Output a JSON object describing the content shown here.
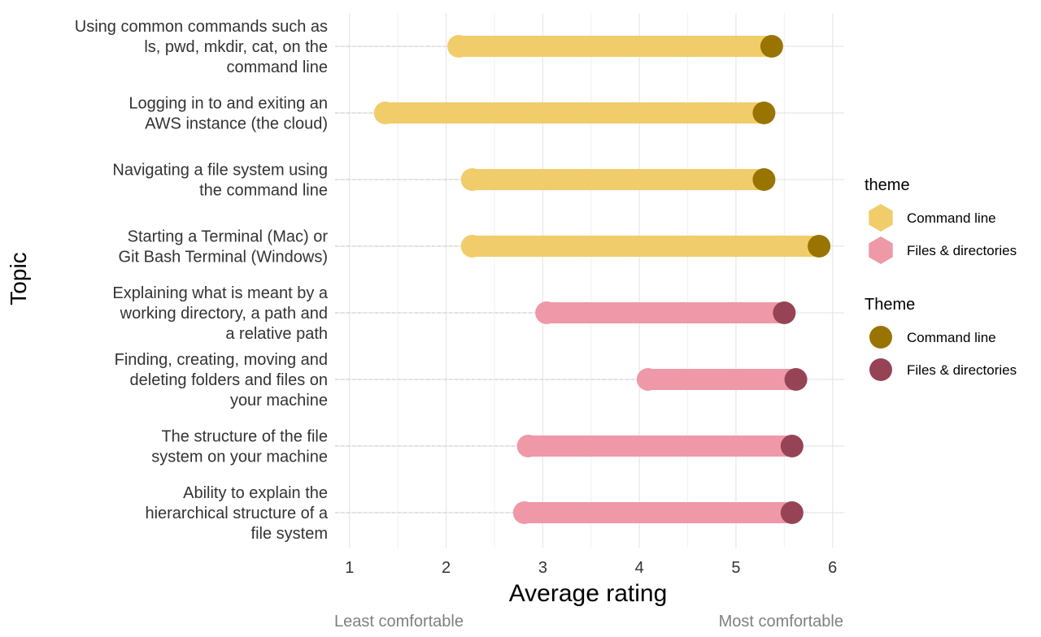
{
  "chart_data": {
    "type": "dumbbell",
    "xlabel": "Average rating",
    "ylabel": "Topic",
    "xlim": [
      0.85,
      6.12
    ],
    "x_ticks": [
      1,
      2,
      3,
      4,
      5,
      6
    ],
    "x_tick_labels": [
      "1",
      "2",
      "3",
      "4",
      "5",
      "6"
    ],
    "grid": true,
    "scale_low_label": "Least comfortable",
    "scale_high_label": "Most comfortable",
    "topics": [
      {
        "label": [
          "Using common commands such as",
          "ls, pwd, mkdir, cat, on the",
          "command line"
        ],
        "theme": "Command line",
        "before": 2.13,
        "after": 5.37
      },
      {
        "label": [
          "Logging in to and exiting an",
          "AWS instance (the cloud)"
        ],
        "theme": "Command line",
        "before": 1.37,
        "after": 5.29
      },
      {
        "label": [
          "Navigating a file system using",
          "the command line"
        ],
        "theme": "Command line",
        "before": 2.27,
        "after": 5.29
      },
      {
        "label": [
          "Starting a Terminal (Mac) or",
          "Git Bash Terminal (Windows)"
        ],
        "theme": "Command line",
        "before": 2.27,
        "after": 5.86
      },
      {
        "label": [
          "Explaining what is meant by a",
          "working directory, a path and",
          "a relative path"
        ],
        "theme": "Files & directories",
        "before": 3.04,
        "after": 5.5
      },
      {
        "label": [
          "Finding, creating, moving and",
          "deleting folders and files on",
          "your machine"
        ],
        "theme": "Files & directories",
        "before": 4.09,
        "after": 5.62
      },
      {
        "label": [
          "The structure of the file",
          "system on your machine"
        ],
        "theme": "Files & directories",
        "before": 2.85,
        "after": 5.58
      },
      {
        "label": [
          "Ability to explain the",
          "hierarchical structure of a",
          "file system"
        ],
        "theme": "Files & directories",
        "before": 2.81,
        "after": 5.58
      }
    ],
    "legend_placement": "right",
    "legends": [
      {
        "title": "theme",
        "shape": "hexagon",
        "items": [
          {
            "name": "Command line",
            "color": "#F0CD6A"
          },
          {
            "name": "Files & directories",
            "color": "#EE98A8"
          }
        ]
      },
      {
        "title": "Theme",
        "shape": "circle",
        "items": [
          {
            "name": "Command line",
            "color": "#9A7400"
          },
          {
            "name": "Files & directories",
            "color": "#964455"
          }
        ]
      }
    ],
    "colors": {
      "Command line": {
        "light": "#F0CD6A",
        "dark": "#9A7400"
      },
      "Files & directories": {
        "light": "#EE98A8",
        "dark": "#964455"
      }
    }
  }
}
